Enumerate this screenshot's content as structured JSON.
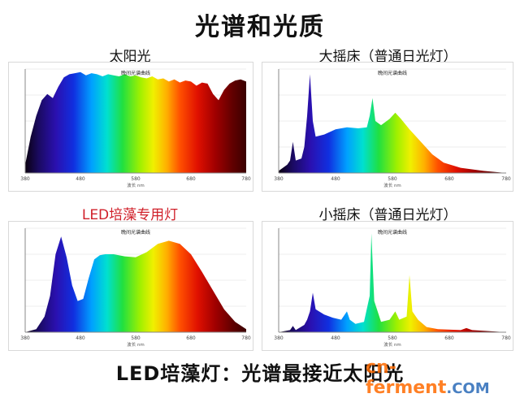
{
  "page": {
    "title": "光谱和光质",
    "footer": "LED培藻灯：光谱最接近太阳光",
    "watermark": "cn-ferment",
    "watermark_suffix": ".COM"
  },
  "colors": {
    "highlight_title": "#d0202a"
  },
  "chart_data": [
    {
      "type": "area",
      "title": "太阳光",
      "inner_title": "晚间光谱曲线",
      "xlabel": "波长 nm",
      "xlim": [
        380,
        780
      ],
      "x_ticks": [
        "380",
        "480",
        "580",
        "680",
        "780"
      ],
      "ylim": [
        0,
        1
      ],
      "points": [
        [
          380,
          0.08
        ],
        [
          390,
          0.35
        ],
        [
          400,
          0.55
        ],
        [
          410,
          0.7
        ],
        [
          420,
          0.76
        ],
        [
          430,
          0.72
        ],
        [
          440,
          0.83
        ],
        [
          450,
          0.92
        ],
        [
          460,
          0.95
        ],
        [
          470,
          0.96
        ],
        [
          480,
          0.97
        ],
        [
          490,
          0.94
        ],
        [
          500,
          0.96
        ],
        [
          510,
          0.95
        ],
        [
          520,
          0.93
        ],
        [
          530,
          0.95
        ],
        [
          540,
          0.94
        ],
        [
          550,
          0.93
        ],
        [
          560,
          0.95
        ],
        [
          570,
          0.93
        ],
        [
          580,
          0.94
        ],
        [
          590,
          0.92
        ],
        [
          600,
          0.91
        ],
        [
          610,
          0.93
        ],
        [
          620,
          0.9
        ],
        [
          630,
          0.91
        ],
        [
          640,
          0.88
        ],
        [
          650,
          0.9
        ],
        [
          660,
          0.87
        ],
        [
          670,
          0.89
        ],
        [
          680,
          0.88
        ],
        [
          690,
          0.84
        ],
        [
          700,
          0.87
        ],
        [
          710,
          0.86
        ],
        [
          720,
          0.76
        ],
        [
          730,
          0.7
        ],
        [
          740,
          0.8
        ],
        [
          750,
          0.86
        ],
        [
          760,
          0.89
        ],
        [
          770,
          0.9
        ],
        [
          780,
          0.88
        ]
      ]
    },
    {
      "type": "area",
      "title": "大摇床（普通日光灯）",
      "inner_title": "晚间光谱曲线",
      "xlabel": "波长 nm",
      "xlim": [
        380,
        780
      ],
      "x_ticks": [
        "380",
        "480",
        "580",
        "680",
        "780"
      ],
      "ylim": [
        0,
        1
      ],
      "points": [
        [
          380,
          0.02
        ],
        [
          395,
          0.08
        ],
        [
          400,
          0.12
        ],
        [
          405,
          0.3
        ],
        [
          410,
          0.12
        ],
        [
          420,
          0.14
        ],
        [
          425,
          0.25
        ],
        [
          430,
          0.55
        ],
        [
          435,
          0.95
        ],
        [
          440,
          0.5
        ],
        [
          445,
          0.35
        ],
        [
          460,
          0.37
        ],
        [
          480,
          0.42
        ],
        [
          500,
          0.44
        ],
        [
          520,
          0.43
        ],
        [
          535,
          0.44
        ],
        [
          540,
          0.55
        ],
        [
          545,
          0.72
        ],
        [
          550,
          0.5
        ],
        [
          560,
          0.46
        ],
        [
          575,
          0.52
        ],
        [
          585,
          0.58
        ],
        [
          595,
          0.52
        ],
        [
          610,
          0.42
        ],
        [
          630,
          0.3
        ],
        [
          650,
          0.18
        ],
        [
          670,
          0.1
        ],
        [
          700,
          0.05
        ],
        [
          740,
          0.02
        ],
        [
          780,
          0.0
        ]
      ]
    },
    {
      "type": "area",
      "title": "LED培藻专用灯",
      "inner_title": "晚间光谱曲线",
      "xlabel": "波长 nm",
      "xlim": [
        380,
        780
      ],
      "x_ticks": [
        "380",
        "480",
        "580",
        "680",
        "780"
      ],
      "ylim": [
        0,
        1
      ],
      "points": [
        [
          380,
          0.0
        ],
        [
          400,
          0.03
        ],
        [
          415,
          0.15
        ],
        [
          425,
          0.35
        ],
        [
          435,
          0.75
        ],
        [
          445,
          0.92
        ],
        [
          455,
          0.72
        ],
        [
          465,
          0.45
        ],
        [
          475,
          0.3
        ],
        [
          485,
          0.32
        ],
        [
          495,
          0.52
        ],
        [
          505,
          0.7
        ],
        [
          515,
          0.74
        ],
        [
          525,
          0.75
        ],
        [
          540,
          0.75
        ],
        [
          560,
          0.73
        ],
        [
          580,
          0.72
        ],
        [
          600,
          0.77
        ],
        [
          620,
          0.85
        ],
        [
          640,
          0.88
        ],
        [
          660,
          0.85
        ],
        [
          680,
          0.75
        ],
        [
          700,
          0.58
        ],
        [
          720,
          0.4
        ],
        [
          740,
          0.22
        ],
        [
          760,
          0.1
        ],
        [
          780,
          0.03
        ]
      ]
    },
    {
      "type": "area",
      "title": "小摇床（普通日光灯）",
      "inner_title": "晚间光谱曲线",
      "xlabel": "波长 nm",
      "xlim": [
        380,
        780
      ],
      "x_ticks": [
        "380",
        "480",
        "580",
        "680",
        "780"
      ],
      "ylim": [
        0,
        1
      ],
      "points": [
        [
          380,
          0.0
        ],
        [
          400,
          0.02
        ],
        [
          405,
          0.06
        ],
        [
          410,
          0.02
        ],
        [
          425,
          0.07
        ],
        [
          430,
          0.12
        ],
        [
          435,
          0.2
        ],
        [
          440,
          0.38
        ],
        [
          445,
          0.22
        ],
        [
          460,
          0.17
        ],
        [
          475,
          0.14
        ],
        [
          490,
          0.12
        ],
        [
          500,
          0.2
        ],
        [
          505,
          0.12
        ],
        [
          515,
          0.08
        ],
        [
          530,
          0.1
        ],
        [
          540,
          0.35
        ],
        [
          543,
          0.95
        ],
        [
          548,
          0.3
        ],
        [
          560,
          0.1
        ],
        [
          575,
          0.12
        ],
        [
          585,
          0.2
        ],
        [
          592,
          0.12
        ],
        [
          605,
          0.15
        ],
        [
          610,
          0.55
        ],
        [
          615,
          0.2
        ],
        [
          625,
          0.12
        ],
        [
          640,
          0.05
        ],
        [
          660,
          0.03
        ],
        [
          700,
          0.02
        ],
        [
          710,
          0.04
        ],
        [
          720,
          0.02
        ],
        [
          780,
          0.0
        ]
      ]
    }
  ]
}
